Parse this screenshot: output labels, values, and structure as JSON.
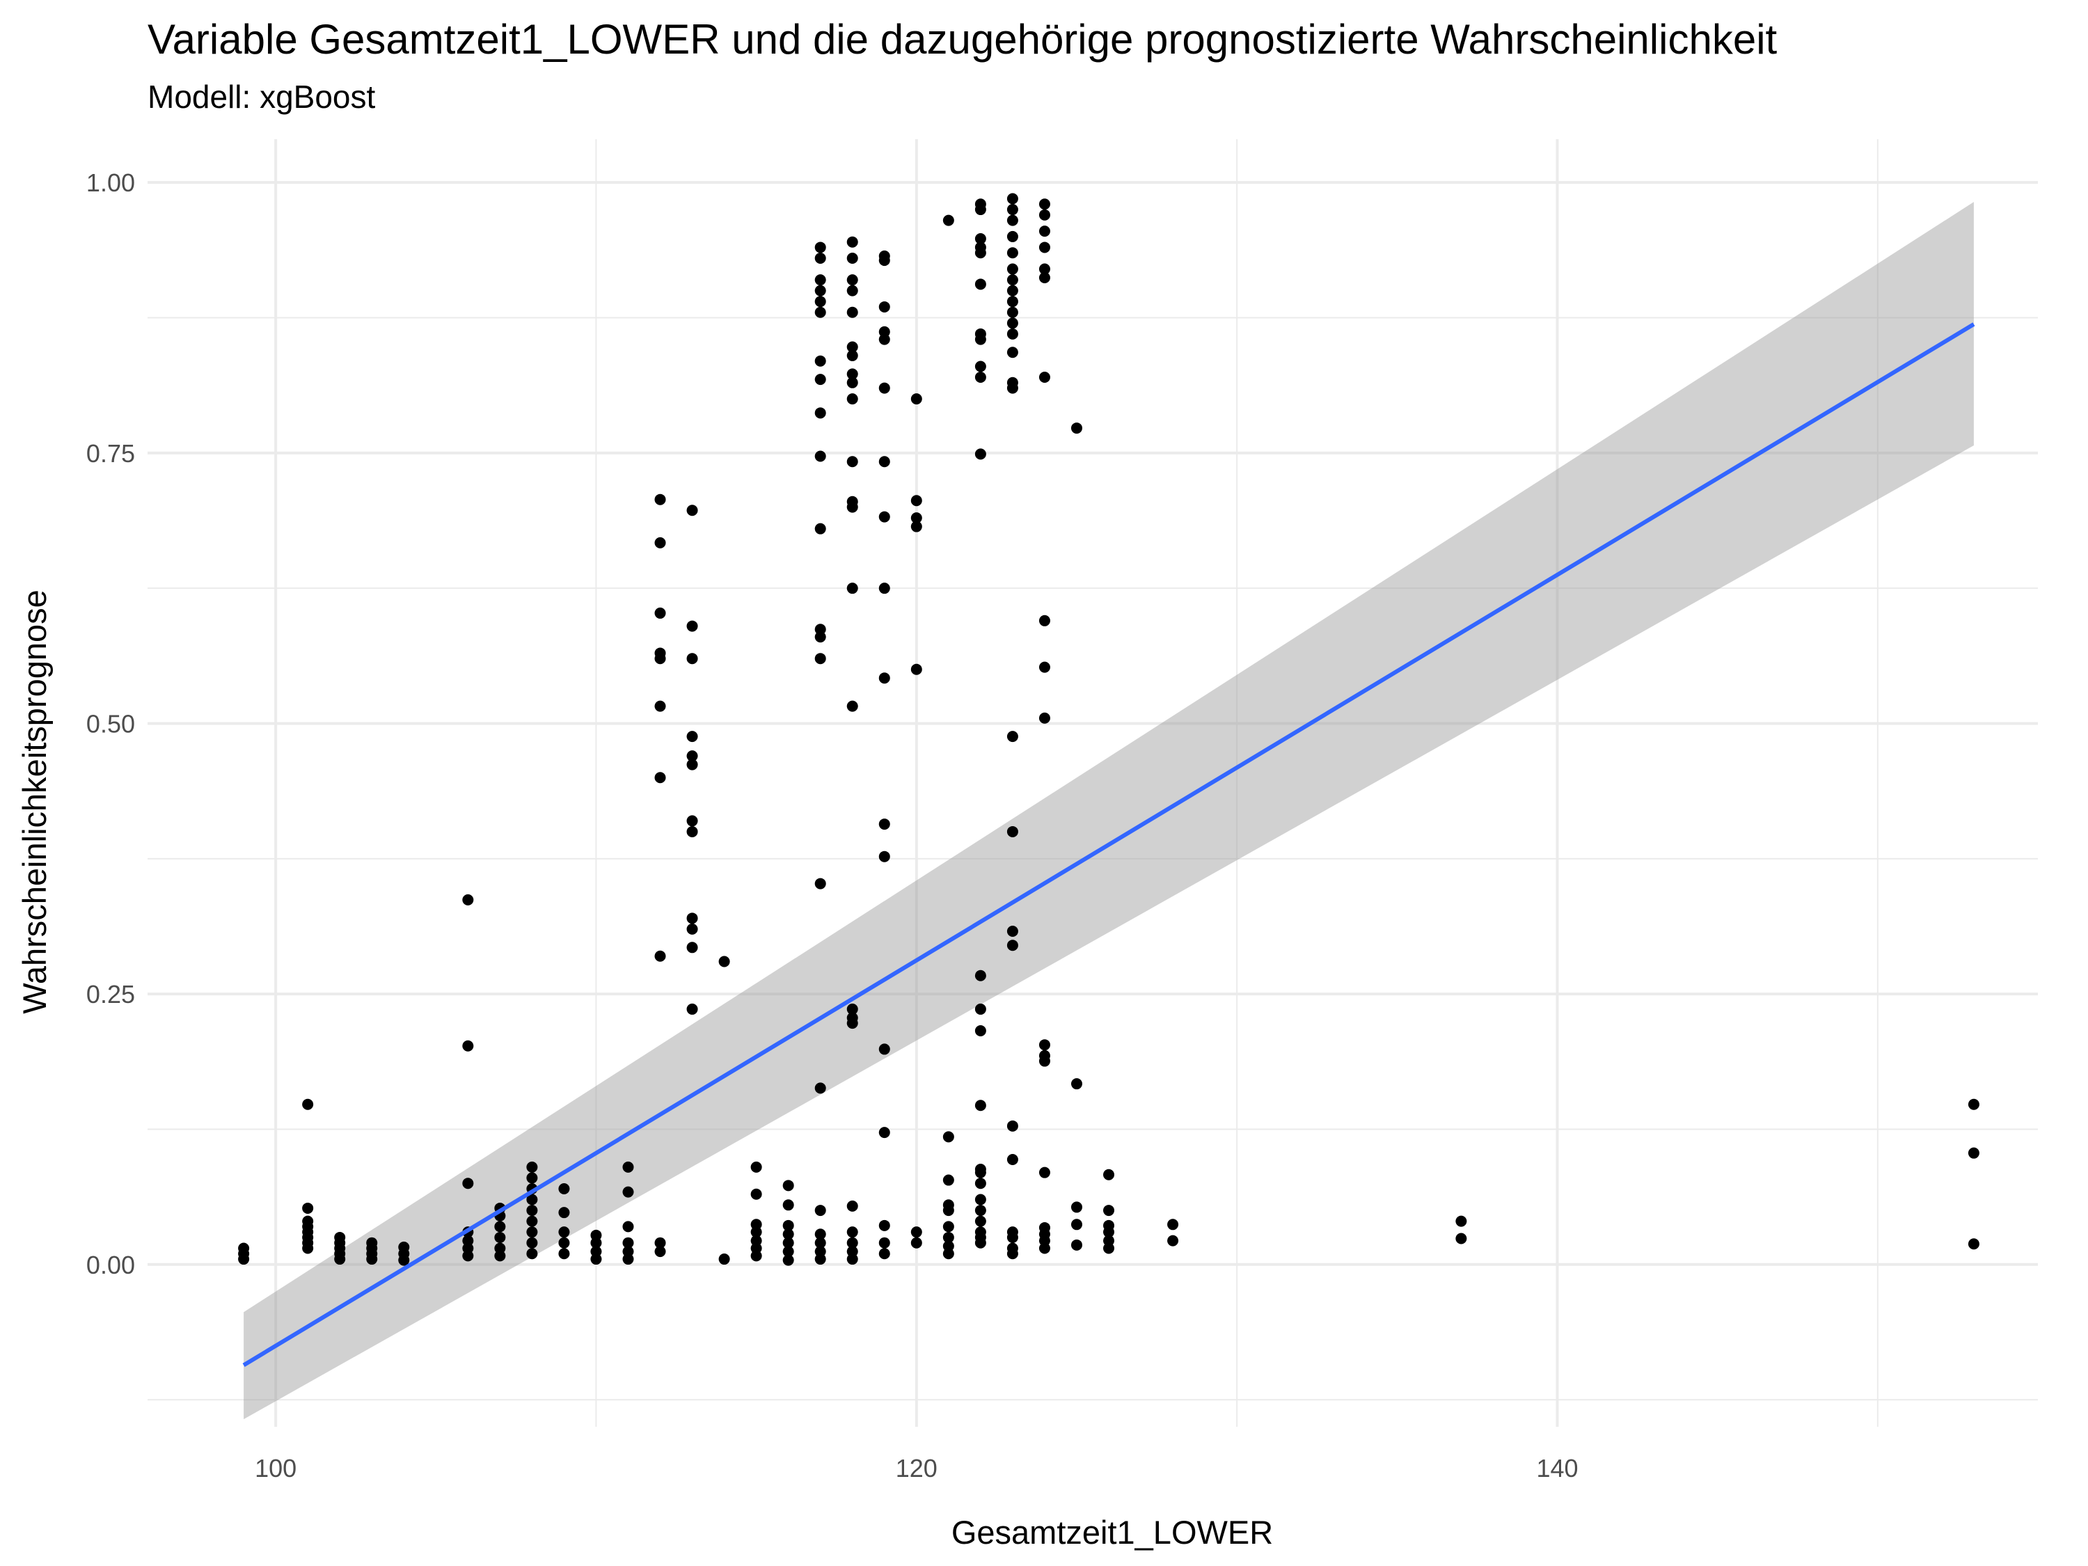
{
  "chart_data": {
    "type": "scatter",
    "title": "Variable Gesamtzeit1_LOWER und die dazugehörige prognostizierte Wahrscheinlichkeit",
    "subtitle": "Modell: xgBoost",
    "xlabel": "Gesamtzeit1_LOWER",
    "ylabel": "Wahrscheinlichkeitsprognose",
    "xlim": [
      96,
      155
    ],
    "ylim": [
      -0.15,
      1.04
    ],
    "x_ticks": [
      100,
      120,
      140
    ],
    "x_tick_labels": [
      "100",
      "120",
      "140"
    ],
    "y_ticks": [
      0,
      0.25,
      0.5,
      0.75,
      1.0
    ],
    "y_tick_labels": [
      "0.00",
      "0.25",
      "0.50",
      "0.75",
      "1.00"
    ],
    "grid": true,
    "colors": {
      "points": "#000000",
      "trend_line": "#3366FF",
      "ribbon": "#999999",
      "grid": "#EBEBEB"
    },
    "series": [
      {
        "type": "points",
        "points": [
          [
            99,
            0.005
          ],
          [
            99,
            0.01
          ],
          [
            99,
            0.015
          ],
          [
            101,
            0.015
          ],
          [
            101,
            0.02
          ],
          [
            101,
            0.025
          ],
          [
            101,
            0.03
          ],
          [
            101,
            0.035
          ],
          [
            101,
            0.04
          ],
          [
            101,
            0.052
          ],
          [
            101,
            0.148
          ],
          [
            102,
            0.005
          ],
          [
            102,
            0.01
          ],
          [
            102,
            0.015
          ],
          [
            102,
            0.02
          ],
          [
            102,
            0.025
          ],
          [
            103,
            0.005
          ],
          [
            103,
            0.01
          ],
          [
            103,
            0.015
          ],
          [
            103,
            0.02
          ],
          [
            104,
            0.004
          ],
          [
            104,
            0.01
          ],
          [
            104,
            0.016
          ],
          [
            106,
            0.008
          ],
          [
            106,
            0.015
          ],
          [
            106,
            0.022
          ],
          [
            106,
            0.03
          ],
          [
            106,
            0.075
          ],
          [
            106,
            0.202
          ],
          [
            106,
            0.337
          ],
          [
            107,
            0.008
          ],
          [
            107,
            0.015
          ],
          [
            107,
            0.025
          ],
          [
            107,
            0.035
          ],
          [
            107,
            0.045
          ],
          [
            107,
            0.052
          ],
          [
            108,
            0.01
          ],
          [
            108,
            0.02
          ],
          [
            108,
            0.03
          ],
          [
            108,
            0.04
          ],
          [
            108,
            0.05
          ],
          [
            108,
            0.06
          ],
          [
            108,
            0.07
          ],
          [
            108,
            0.08
          ],
          [
            108,
            0.09
          ],
          [
            109,
            0.01
          ],
          [
            109,
            0.02
          ],
          [
            109,
            0.03
          ],
          [
            109,
            0.048
          ],
          [
            109,
            0.07
          ],
          [
            110,
            0.005
          ],
          [
            110,
            0.012
          ],
          [
            110,
            0.02
          ],
          [
            110,
            0.027
          ],
          [
            111,
            0.005
          ],
          [
            111,
            0.012
          ],
          [
            111,
            0.02
          ],
          [
            111,
            0.035
          ],
          [
            111,
            0.067
          ],
          [
            111,
            0.09
          ],
          [
            112,
            0.012
          ],
          [
            112,
            0.02
          ],
          [
            112,
            0.285
          ],
          [
            112,
            0.45
          ],
          [
            112,
            0.516
          ],
          [
            112,
            0.56
          ],
          [
            112,
            0.565
          ],
          [
            112,
            0.602
          ],
          [
            112,
            0.667
          ],
          [
            112,
            0.707
          ],
          [
            113,
            0.236
          ],
          [
            113,
            0.293
          ],
          [
            113,
            0.31
          ],
          [
            113,
            0.32
          ],
          [
            113,
            0.4
          ],
          [
            113,
            0.41
          ],
          [
            113,
            0.462
          ],
          [
            113,
            0.47
          ],
          [
            113,
            0.488
          ],
          [
            113,
            0.56
          ],
          [
            113,
            0.59
          ],
          [
            113,
            0.697
          ],
          [
            114,
            0.005
          ],
          [
            114,
            0.28
          ],
          [
            115,
            0.008
          ],
          [
            115,
            0.015
          ],
          [
            115,
            0.022
          ],
          [
            115,
            0.03
          ],
          [
            115,
            0.037
          ],
          [
            115,
            0.065
          ],
          [
            115,
            0.09
          ],
          [
            116,
            0.004
          ],
          [
            116,
            0.012
          ],
          [
            116,
            0.02
          ],
          [
            116,
            0.028
          ],
          [
            116,
            0.036
          ],
          [
            116,
            0.055
          ],
          [
            116,
            0.073
          ],
          [
            117,
            0.005
          ],
          [
            117,
            0.012
          ],
          [
            117,
            0.02
          ],
          [
            117,
            0.028
          ],
          [
            117,
            0.05
          ],
          [
            117,
            0.163
          ],
          [
            117,
            0.352
          ],
          [
            117,
            0.56
          ],
          [
            117,
            0.58
          ],
          [
            117,
            0.587
          ],
          [
            117,
            0.68
          ],
          [
            117,
            0.747
          ],
          [
            117,
            0.787
          ],
          [
            117,
            0.818
          ],
          [
            117,
            0.835
          ],
          [
            117,
            0.88
          ],
          [
            117,
            0.89
          ],
          [
            117,
            0.9
          ],
          [
            117,
            0.91
          ],
          [
            117,
            0.93
          ],
          [
            117,
            0.94
          ],
          [
            118,
            0.005
          ],
          [
            118,
            0.012
          ],
          [
            118,
            0.02
          ],
          [
            118,
            0.03
          ],
          [
            118,
            0.054
          ],
          [
            118,
            0.223
          ],
          [
            118,
            0.228
          ],
          [
            118,
            0.236
          ],
          [
            118,
            0.516
          ],
          [
            118,
            0.625
          ],
          [
            118,
            0.7
          ],
          [
            118,
            0.705
          ],
          [
            118,
            0.742
          ],
          [
            118,
            0.8
          ],
          [
            118,
            0.815
          ],
          [
            118,
            0.823
          ],
          [
            118,
            0.84
          ],
          [
            118,
            0.848
          ],
          [
            118,
            0.88
          ],
          [
            118,
            0.9
          ],
          [
            118,
            0.91
          ],
          [
            118,
            0.93
          ],
          [
            118,
            0.945
          ],
          [
            119,
            0.01
          ],
          [
            119,
            0.02
          ],
          [
            119,
            0.036
          ],
          [
            119,
            0.122
          ],
          [
            119,
            0.199
          ],
          [
            119,
            0.377
          ],
          [
            119,
            0.407
          ],
          [
            119,
            0.542
          ],
          [
            119,
            0.625
          ],
          [
            119,
            0.691
          ],
          [
            119,
            0.742
          ],
          [
            119,
            0.81
          ],
          [
            119,
            0.855
          ],
          [
            119,
            0.862
          ],
          [
            119,
            0.885
          ],
          [
            119,
            0.928
          ],
          [
            119,
            0.932
          ],
          [
            120,
            0.02
          ],
          [
            120,
            0.03
          ],
          [
            120,
            0.55
          ],
          [
            120,
            0.682
          ],
          [
            120,
            0.69
          ],
          [
            120,
            0.706
          ],
          [
            120,
            0.8
          ],
          [
            121,
            0.01
          ],
          [
            121,
            0.017
          ],
          [
            121,
            0.025
          ],
          [
            121,
            0.035
          ],
          [
            121,
            0.05
          ],
          [
            121,
            0.055
          ],
          [
            121,
            0.078
          ],
          [
            121,
            0.118
          ],
          [
            121,
            0.965
          ],
          [
            122,
            0.02
          ],
          [
            122,
            0.025
          ],
          [
            122,
            0.03
          ],
          [
            122,
            0.04
          ],
          [
            122,
            0.05
          ],
          [
            122,
            0.06
          ],
          [
            122,
            0.075
          ],
          [
            122,
            0.085
          ],
          [
            122,
            0.088
          ],
          [
            122,
            0.147
          ],
          [
            122,
            0.216
          ],
          [
            122,
            0.236
          ],
          [
            122,
            0.267
          ],
          [
            122,
            0.749
          ],
          [
            122,
            0.82
          ],
          [
            122,
            0.83
          ],
          [
            122,
            0.855
          ],
          [
            122,
            0.86
          ],
          [
            122,
            0.906
          ],
          [
            122,
            0.935
          ],
          [
            122,
            0.94
          ],
          [
            122,
            0.948
          ],
          [
            122,
            0.975
          ],
          [
            122,
            0.98
          ],
          [
            123,
            0.01
          ],
          [
            123,
            0.015
          ],
          [
            123,
            0.025
          ],
          [
            123,
            0.03
          ],
          [
            123,
            0.097
          ],
          [
            123,
            0.128
          ],
          [
            123,
            0.295
          ],
          [
            123,
            0.308
          ],
          [
            123,
            0.4
          ],
          [
            123,
            0.488
          ],
          [
            123,
            0.81
          ],
          [
            123,
            0.815
          ],
          [
            123,
            0.843
          ],
          [
            123,
            0.86
          ],
          [
            123,
            0.87
          ],
          [
            123,
            0.88
          ],
          [
            123,
            0.89
          ],
          [
            123,
            0.9
          ],
          [
            123,
            0.91
          ],
          [
            123,
            0.92
          ],
          [
            123,
            0.935
          ],
          [
            123,
            0.95
          ],
          [
            123,
            0.965
          ],
          [
            123,
            0.975
          ],
          [
            123,
            0.985
          ],
          [
            124,
            0.015
          ],
          [
            124,
            0.022
          ],
          [
            124,
            0.028
          ],
          [
            124,
            0.034
          ],
          [
            124,
            0.085
          ],
          [
            124,
            0.188
          ],
          [
            124,
            0.193
          ],
          [
            124,
            0.203
          ],
          [
            124,
            0.505
          ],
          [
            124,
            0.552
          ],
          [
            124,
            0.595
          ],
          [
            124,
            0.82
          ],
          [
            124,
            0.912
          ],
          [
            124,
            0.92
          ],
          [
            124,
            0.94
          ],
          [
            124,
            0.955
          ],
          [
            124,
            0.97
          ],
          [
            124,
            0.98
          ],
          [
            125,
            0.018
          ],
          [
            125,
            0.037
          ],
          [
            125,
            0.053
          ],
          [
            125,
            0.167
          ],
          [
            125,
            0.773
          ],
          [
            126,
            0.015
          ],
          [
            126,
            0.022
          ],
          [
            126,
            0.03
          ],
          [
            126,
            0.036
          ],
          [
            126,
            0.05
          ],
          [
            126,
            0.083
          ],
          [
            128,
            0.022
          ],
          [
            128,
            0.037
          ],
          [
            137,
            0.024
          ],
          [
            137,
            0.04
          ],
          [
            153,
            0.019
          ],
          [
            153,
            0.103
          ],
          [
            153,
            0.148
          ]
        ]
      },
      {
        "type": "linear-fit",
        "start": {
          "x": 99,
          "y": -0.093,
          "ci": [
            -0.143,
            -0.044
          ]
        },
        "end": {
          "x": 153,
          "y": 0.869,
          "ci": [
            0.757,
            0.982
          ]
        }
      }
    ]
  }
}
